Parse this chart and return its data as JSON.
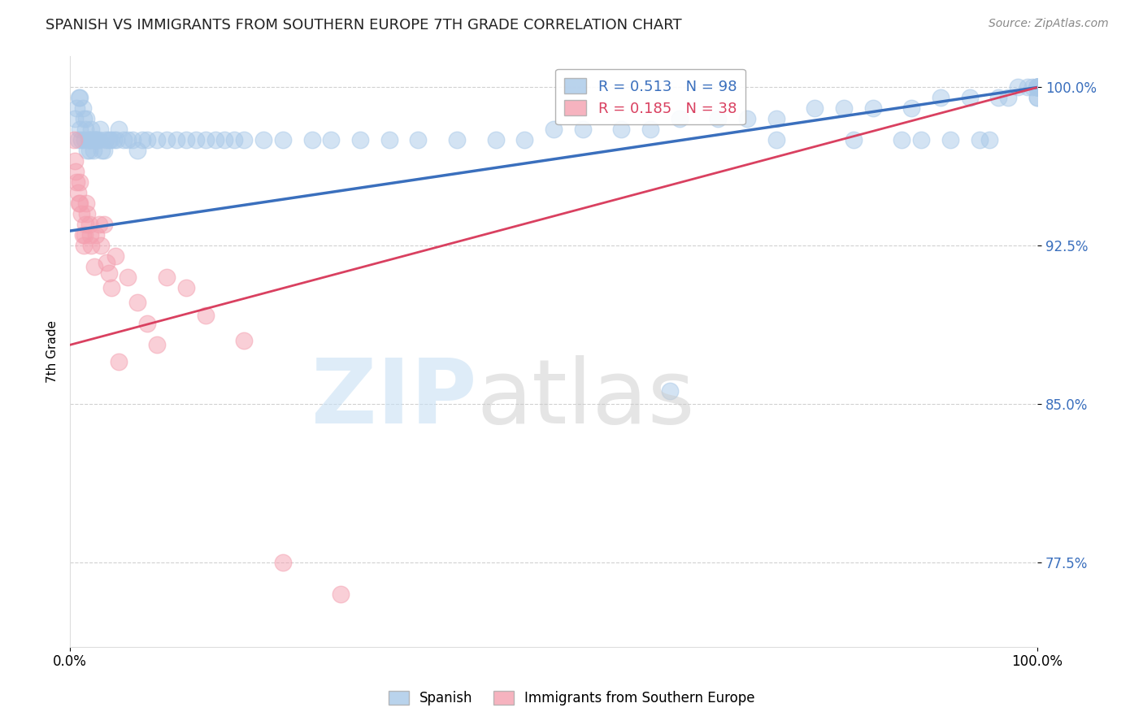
{
  "title": "SPANISH VS IMMIGRANTS FROM SOUTHERN EUROPE 7TH GRADE CORRELATION CHART",
  "source": "Source: ZipAtlas.com",
  "ylabel": "7th Grade",
  "xlim": [
    0.0,
    1.0
  ],
  "ylim": [
    0.735,
    1.015
  ],
  "yticks": [
    0.775,
    0.85,
    0.925,
    1.0
  ],
  "ytick_labels": [
    "77.5%",
    "85.0%",
    "92.5%",
    "100.0%"
  ],
  "xticks": [
    0.0,
    1.0
  ],
  "xtick_labels": [
    "0.0%",
    "100.0%"
  ],
  "blue_R": 0.513,
  "blue_N": 98,
  "pink_R": 0.185,
  "pink_N": 38,
  "blue_color": "#a8c8e8",
  "pink_color": "#f4a0b0",
  "blue_line_color": "#3a6fbd",
  "pink_line_color": "#d94060",
  "legend_label_blue": "Spanish",
  "legend_label_pink": "Immigrants from Southern Europe",
  "blue_line_x0": 0.0,
  "blue_line_y0": 0.932,
  "blue_line_x1": 1.0,
  "blue_line_y1": 1.0,
  "pink_line_x0": 0.0,
  "pink_line_y0": 0.878,
  "pink_line_x1": 1.0,
  "pink_line_y1": 1.0,
  "blue_scatter_x": [
    0.005,
    0.007,
    0.008,
    0.009,
    0.01,
    0.01,
    0.012,
    0.013,
    0.014,
    0.015,
    0.016,
    0.017,
    0.018,
    0.019,
    0.02,
    0.02,
    0.021,
    0.022,
    0.023,
    0.024,
    0.025,
    0.026,
    0.027,
    0.028,
    0.03,
    0.031,
    0.033,
    0.035,
    0.037,
    0.04,
    0.042,
    0.045,
    0.048,
    0.05,
    0.055,
    0.06,
    0.065,
    0.07,
    0.075,
    0.08,
    0.09,
    0.1,
    0.11,
    0.12,
    0.13,
    0.14,
    0.15,
    0.16,
    0.17,
    0.18,
    0.2,
    0.22,
    0.25,
    0.27,
    0.3,
    0.33,
    0.36,
    0.4,
    0.44,
    0.47,
    0.5,
    0.53,
    0.57,
    0.6,
    0.63,
    0.67,
    0.7,
    0.73,
    0.77,
    0.8,
    0.83,
    0.87,
    0.9,
    0.93,
    0.96,
    0.97,
    0.98,
    0.99,
    0.995,
    1.0,
    1.0,
    1.0,
    1.0,
    1.0,
    1.0,
    1.0,
    1.0,
    1.0,
    1.0,
    1.0,
    0.62,
    0.73,
    0.81,
    0.86,
    0.88,
    0.91,
    0.94,
    0.95
  ],
  "blue_scatter_y": [
    0.985,
    0.99,
    0.975,
    0.995,
    0.98,
    0.995,
    0.975,
    0.99,
    0.985,
    0.975,
    0.98,
    0.985,
    0.97,
    0.975,
    0.97,
    0.975,
    0.975,
    0.98,
    0.975,
    0.97,
    0.975,
    0.975,
    0.975,
    0.975,
    0.975,
    0.98,
    0.97,
    0.97,
    0.975,
    0.975,
    0.975,
    0.975,
    0.975,
    0.98,
    0.975,
    0.975,
    0.975,
    0.97,
    0.975,
    0.975,
    0.975,
    0.975,
    0.975,
    0.975,
    0.975,
    0.975,
    0.975,
    0.975,
    0.975,
    0.975,
    0.975,
    0.975,
    0.975,
    0.975,
    0.975,
    0.975,
    0.975,
    0.975,
    0.975,
    0.975,
    0.98,
    0.98,
    0.98,
    0.98,
    0.985,
    0.985,
    0.985,
    0.985,
    0.99,
    0.99,
    0.99,
    0.99,
    0.995,
    0.995,
    0.995,
    0.995,
    1.0,
    1.0,
    1.0,
    1.0,
    1.0,
    1.0,
    1.0,
    1.0,
    1.0,
    1.0,
    1.0,
    1.0,
    0.995,
    0.995,
    0.856,
    0.975,
    0.975,
    0.975,
    0.975,
    0.975,
    0.975,
    0.975
  ],
  "pink_scatter_x": [
    0.004,
    0.005,
    0.006,
    0.007,
    0.008,
    0.009,
    0.01,
    0.01,
    0.012,
    0.013,
    0.014,
    0.015,
    0.016,
    0.017,
    0.018,
    0.02,
    0.021,
    0.022,
    0.025,
    0.027,
    0.03,
    0.032,
    0.035,
    0.038,
    0.04,
    0.043,
    0.047,
    0.05,
    0.06,
    0.07,
    0.08,
    0.09,
    0.1,
    0.12,
    0.14,
    0.18,
    0.22,
    0.28
  ],
  "pink_scatter_y": [
    0.975,
    0.965,
    0.96,
    0.955,
    0.95,
    0.945,
    0.955,
    0.945,
    0.94,
    0.93,
    0.925,
    0.93,
    0.935,
    0.945,
    0.94,
    0.935,
    0.93,
    0.925,
    0.915,
    0.93,
    0.935,
    0.925,
    0.935,
    0.917,
    0.912,
    0.905,
    0.92,
    0.87,
    0.91,
    0.898,
    0.888,
    0.878,
    0.91,
    0.905,
    0.892,
    0.88,
    0.775,
    0.76
  ]
}
